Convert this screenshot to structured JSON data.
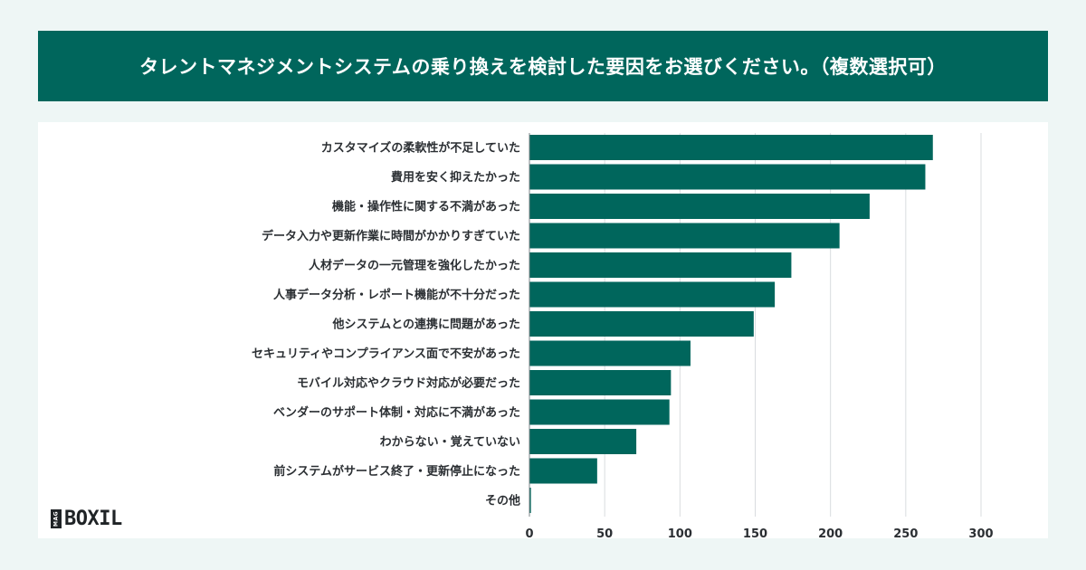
{
  "theme": {
    "accent": "#00665c",
    "grid": "#d9dcdf",
    "text": "#2b2f33"
  },
  "header": {
    "title": "タレントマネジメントシステムの乗り換えを検討した要因をお選びください。（複数選択可）"
  },
  "logo": {
    "mag": "MAG",
    "text": "BOXIL"
  },
  "chart_data": {
    "type": "bar",
    "orientation": "horizontal",
    "categories": [
      "カスタマイズの柔軟性が不足していた",
      "費用を安く抑えたかった",
      "機能・操作性に関する不満があった",
      "データ入力や更新作業に時間がかかりすぎていた",
      "人材データの一元管理を強化したかった",
      "人事データ分析・レポート機能が不十分だった",
      "他システムとの連携に問題があった",
      "セキュリティやコンプライアンス面で不安があった",
      "モバイル対応やクラウド対応が必要だった",
      "ベンダーのサポート体制・対応に不満があった",
      "わからない・覚えていない",
      "前システムがサービス終了・更新停止になった",
      "その他"
    ],
    "values": [
      268,
      263,
      226,
      206,
      174,
      163,
      149,
      107,
      94,
      93,
      71,
      45,
      1
    ],
    "xlim": [
      0,
      300
    ],
    "xticks": [
      0,
      50,
      100,
      150,
      200,
      250,
      300
    ],
    "grid": true
  }
}
